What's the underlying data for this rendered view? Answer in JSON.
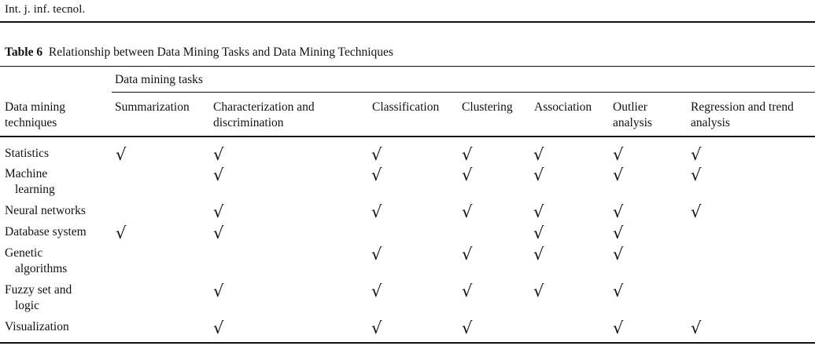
{
  "running_head": "Int. j. inf. tecnol.",
  "caption": {
    "label": "Table 6",
    "text": "Relationship between Data Mining Tasks and Data Mining Techniques"
  },
  "table": {
    "group_header": "Data mining tasks",
    "stub_header": [
      "Data mining",
      "techniques"
    ],
    "columns": [
      [
        "Summarization"
      ],
      [
        "Characterization and",
        "discrimination"
      ],
      [
        "Classification"
      ],
      [
        "Clustering"
      ],
      [
        "Association"
      ],
      [
        "Outlier",
        "analysis"
      ],
      [
        "Regression and trend",
        "analysis"
      ]
    ],
    "check_mark": "√",
    "rows": [
      {
        "label": [
          "Statistics"
        ],
        "checks": [
          true,
          true,
          true,
          true,
          true,
          true,
          true
        ]
      },
      {
        "label": [
          "Machine",
          "learning"
        ],
        "checks": [
          false,
          true,
          true,
          true,
          true,
          true,
          true
        ]
      },
      {
        "label": [
          "Neural networks"
        ],
        "checks": [
          false,
          true,
          true,
          true,
          true,
          true,
          true
        ]
      },
      {
        "label": [
          "Database system"
        ],
        "checks": [
          true,
          true,
          false,
          false,
          true,
          true,
          false
        ]
      },
      {
        "label": [
          "Genetic",
          "algorithms"
        ],
        "checks": [
          false,
          false,
          true,
          true,
          true,
          true,
          false
        ]
      },
      {
        "label": [
          "Fuzzy set and",
          "logic"
        ],
        "checks": [
          false,
          true,
          true,
          true,
          true,
          true,
          false
        ]
      },
      {
        "label": [
          "Visualization"
        ],
        "checks": [
          false,
          true,
          true,
          true,
          false,
          true,
          true
        ]
      }
    ]
  }
}
